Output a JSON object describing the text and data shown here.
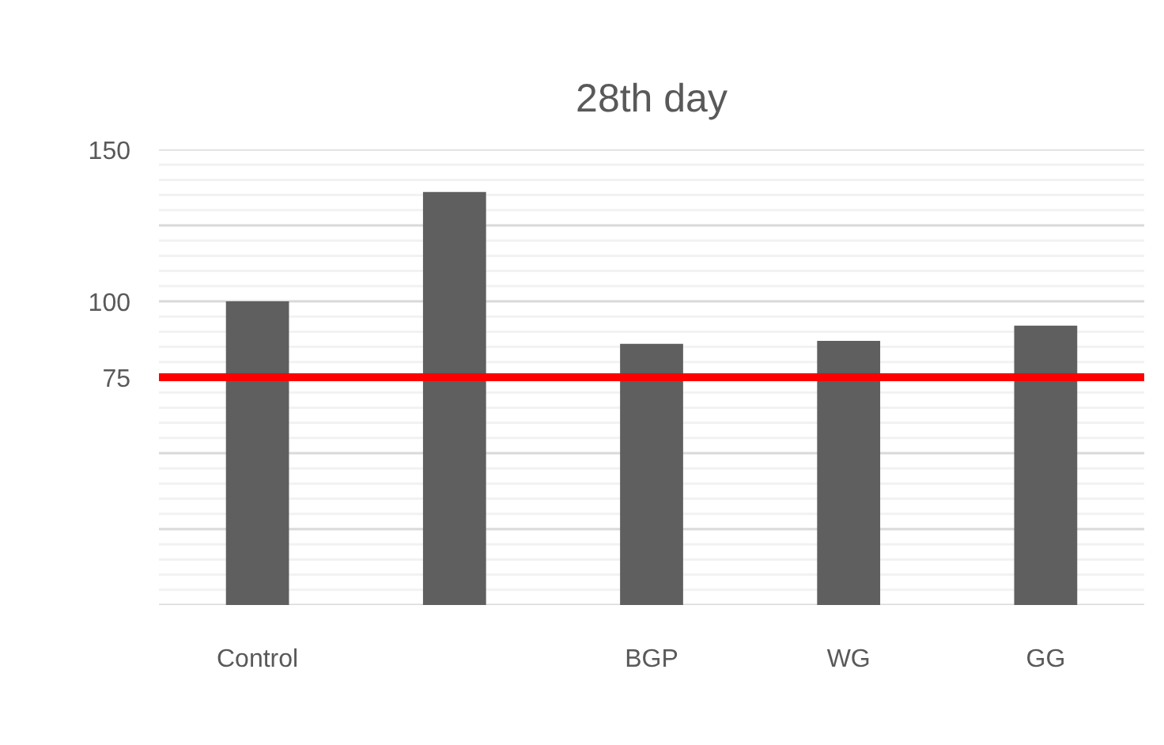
{
  "chart_data": {
    "type": "bar",
    "title": "28th day",
    "categories": [
      "Control",
      null,
      "BGP",
      "WG",
      "GG"
    ],
    "values": [
      100,
      136,
      86,
      87,
      92
    ],
    "color": "#5f5f5f",
    "ylim": [
      0,
      150
    ],
    "yticks": [
      {
        "value": 0,
        "label": null
      },
      {
        "value": 25,
        "label": null
      },
      {
        "value": 50,
        "label": null
      },
      75,
      100,
      {
        "value": 125,
        "label": null
      },
      150
    ],
    "grid": "y",
    "ref_lines": [
      {
        "axis": "y",
        "value": 75,
        "color": "#ff0000"
      }
    ]
  }
}
